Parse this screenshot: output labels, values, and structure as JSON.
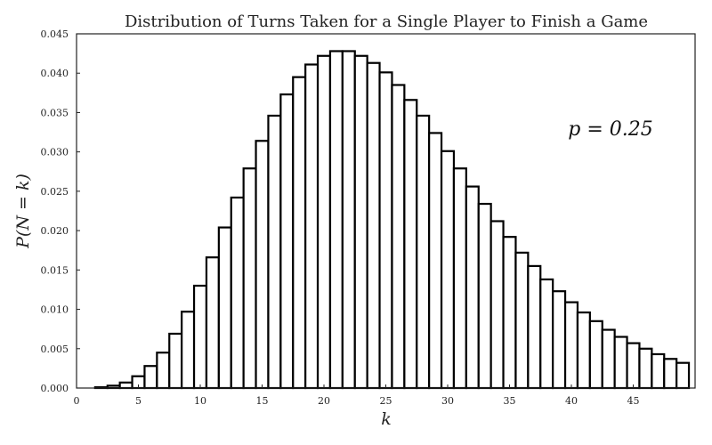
{
  "chart_data": {
    "type": "bar",
    "title": "Distribution of Turns Taken for a Single Player to Finish a Game",
    "xlabel": "k",
    "ylabel": "P(N = k)",
    "annotation": "p = 0.25",
    "xlim": [
      0,
      50
    ],
    "ylim": [
      0,
      0.045
    ],
    "x_ticks": [
      0,
      5,
      10,
      15,
      20,
      25,
      30,
      35,
      40,
      45
    ],
    "y_ticks": [
      "0.000",
      "0.005",
      "0.010",
      "0.015",
      "0.020",
      "0.025",
      "0.030",
      "0.035",
      "0.040",
      "0.045"
    ],
    "grid": false,
    "x": [
      1,
      2,
      3,
      4,
      5,
      6,
      7,
      8,
      9,
      10,
      11,
      12,
      13,
      14,
      15,
      16,
      17,
      18,
      19,
      20,
      21,
      22,
      23,
      24,
      25,
      26,
      27,
      28,
      29,
      30,
      31,
      32,
      33,
      34,
      35,
      36,
      37,
      38,
      39,
      40,
      41,
      42,
      43,
      44,
      45,
      46,
      47,
      48,
      49
    ],
    "values": [
      0.0,
      0.0001,
      0.0003,
      0.0007,
      0.0015,
      0.0028,
      0.0045,
      0.0069,
      0.0097,
      0.013,
      0.0166,
      0.0204,
      0.0242,
      0.0279,
      0.0314,
      0.0346,
      0.0373,
      0.0395,
      0.0411,
      0.0422,
      0.0428,
      0.0428,
      0.0422,
      0.0413,
      0.0401,
      0.0385,
      0.0366,
      0.0346,
      0.0324,
      0.0301,
      0.0279,
      0.0256,
      0.0234,
      0.0212,
      0.0192,
      0.0172,
      0.0155,
      0.0138,
      0.0123,
      0.0109,
      0.0096,
      0.0085,
      0.0074,
      0.0065,
      0.0057,
      0.005,
      0.0043,
      0.0037,
      0.0032
    ]
  }
}
